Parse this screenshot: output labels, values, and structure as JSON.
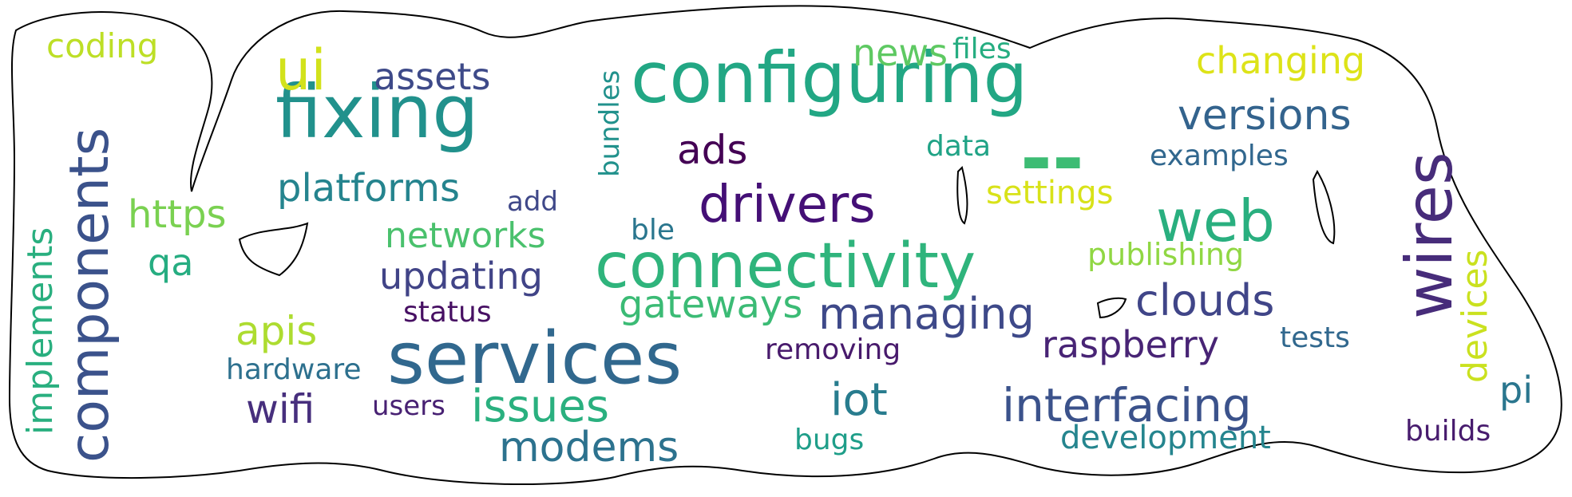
{
  "words": [
    {
      "text": "configuring",
      "color": "#22a784"
    },
    {
      "text": "fixing",
      "color": "#21918c"
    },
    {
      "text": "components",
      "color": "#3b528b"
    },
    {
      "text": "services",
      "color": "#31688e"
    },
    {
      "text": "connectivity",
      "color": "#2fb47c"
    },
    {
      "text": "wires",
      "color": "#472c7a"
    },
    {
      "text": "drivers",
      "color": "#440f76"
    },
    {
      "text": "web",
      "color": "#29af7f"
    },
    {
      "text": "ui",
      "color": "#d2e21b"
    },
    {
      "text": "versions",
      "color": "#33638d"
    },
    {
      "text": "managing",
      "color": "#3e4989"
    },
    {
      "text": "interfacing",
      "color": "#3b528b"
    },
    {
      "text": "issues",
      "color": "#2ab07f"
    },
    {
      "text": "clouds",
      "color": "#404588"
    },
    {
      "text": "raspberry",
      "color": "#482475"
    },
    {
      "text": "modems",
      "color": "#2c728e"
    },
    {
      "text": "iot",
      "color": "#287c8e"
    },
    {
      "text": "platforms",
      "color": "#25848e"
    },
    {
      "text": "gateways",
      "color": "#3bbb75"
    },
    {
      "text": "assets",
      "color": "#3e4a89"
    },
    {
      "text": "changing",
      "color": "#dde318"
    },
    {
      "text": "implements",
      "color": "#29af7f"
    },
    {
      "text": "devices",
      "color": "#cae11f"
    },
    {
      "text": "updating",
      "color": "#414487"
    },
    {
      "text": "apis",
      "color": "#addc30"
    },
    {
      "text": "wifi",
      "color": "#472f7d"
    },
    {
      "text": "https",
      "color": "#7ad151"
    },
    {
      "text": "networks",
      "color": "#4ac16d"
    },
    {
      "text": "ads",
      "color": "#440154"
    },
    {
      "text": "coding",
      "color": "#bddf26"
    },
    {
      "text": "news",
      "color": "#5ec962"
    },
    {
      "text": "development",
      "color": "#25858e"
    },
    {
      "text": "settings",
      "color": "#d8e219"
    },
    {
      "text": "publishing",
      "color": "#90d743"
    },
    {
      "text": "qa",
      "color": "#26ad81"
    },
    {
      "text": "pi",
      "color": "#2a768e"
    },
    {
      "text": "removing",
      "color": "#481a6c"
    },
    {
      "text": "examples",
      "color": "#31678e"
    },
    {
      "text": "hardware",
      "color": "#2d708e"
    },
    {
      "text": "tests",
      "color": "#31688e"
    },
    {
      "text": "files",
      "color": "#26ad81"
    },
    {
      "text": "status",
      "color": "#471063"
    },
    {
      "text": "users",
      "color": "#482173"
    },
    {
      "text": "bundles",
      "color": "#21918c"
    },
    {
      "text": "data",
      "color": "#20a386"
    },
    {
      "text": "builds",
      "color": "#481c6e"
    },
    {
      "text": "add",
      "color": "#3f4889"
    },
    {
      "text": "ble",
      "color": "#2a768e"
    },
    {
      "text": "bugs",
      "color": "#1f9e89"
    },
    {
      "text": "--",
      "color": "#3dbc74"
    }
  ]
}
